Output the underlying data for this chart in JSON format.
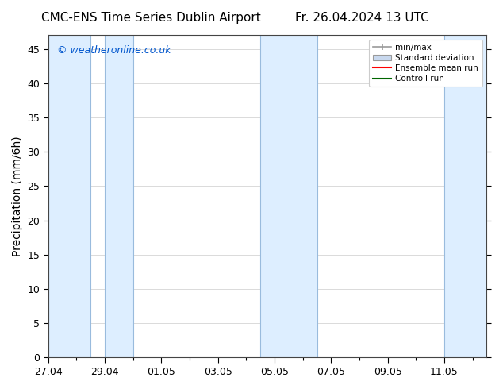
{
  "title_left": "CMC-ENS Time Series Dublin Airport",
  "title_right": "Fr. 26.04.2024 13 UTC",
  "ylabel": "Precipitation (mm/6h)",
  "watermark": "© weatheronline.co.uk",
  "watermark_color": "#0055cc",
  "ylim": [
    0,
    47
  ],
  "yticks": [
    0,
    5,
    10,
    15,
    20,
    25,
    30,
    35,
    40,
    45
  ],
  "xtick_labels": [
    "27.04",
    "29.04",
    "01.05",
    "03.05",
    "05.05",
    "07.05",
    "09.05",
    "11.05"
  ],
  "xtick_positions": [
    0,
    2,
    4,
    6,
    8,
    10,
    12,
    14
  ],
  "x_min": 0,
  "x_max": 15.5,
  "background_color": "#ffffff",
  "plot_bg_color": "#ffffff",
  "shaded_band_color": "#ddeeff",
  "shaded_band_edge_color": "#99bbdd",
  "legend_labels": [
    "min/max",
    "Standard deviation",
    "Ensemble mean run",
    "Controll run"
  ],
  "minmax_color": "#999999",
  "std_face_color": "#c8d8ee",
  "ensemble_color": "#ff0000",
  "control_color": "#006600",
  "title_fontsize": 11,
  "axis_label_fontsize": 10,
  "tick_fontsize": 9,
  "watermark_fontsize": 9,
  "shaded_regions": [
    [
      0.0,
      1.5
    ],
    [
      2.0,
      3.0
    ],
    [
      7.5,
      9.5
    ],
    [
      14.0,
      15.5
    ]
  ]
}
